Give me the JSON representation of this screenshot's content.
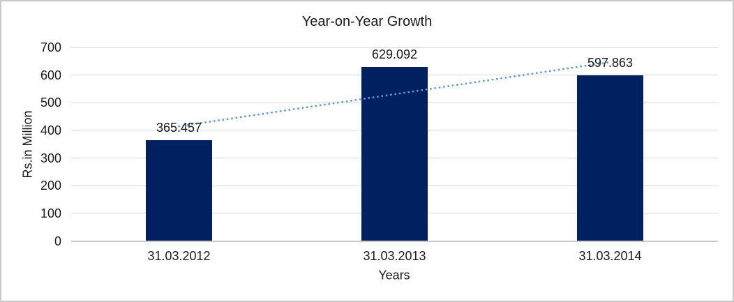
{
  "chart_data": {
    "type": "bar",
    "title": "Year-on-Year Growth",
    "categories": [
      "31.03.2012",
      "31.03.2013",
      "31.03.2014"
    ],
    "values": [
      365.457,
      629.092,
      597.863
    ],
    "data_labels": [
      "365.457",
      "629.092",
      "597.863"
    ],
    "xlabel": "Years",
    "ylabel": "Rs.in Million",
    "ylim": [
      0,
      700
    ],
    "yticks": [
      0,
      100,
      200,
      300,
      400,
      500,
      600,
      700
    ],
    "grid": "horizontal-major",
    "legend": "none",
    "trendline": {
      "type": "linear",
      "style": "dotted",
      "endpoint_values": [
        414.6,
        647.0
      ]
    }
  },
  "colors": {
    "bar": "#002060",
    "trendline": "#5B9BD5",
    "gridline": "#D9D9D9",
    "axis_line": "#C9C9C9",
    "text": "#1A1A1A",
    "border": "#C9C9C9",
    "background": "#FFFFFF"
  }
}
